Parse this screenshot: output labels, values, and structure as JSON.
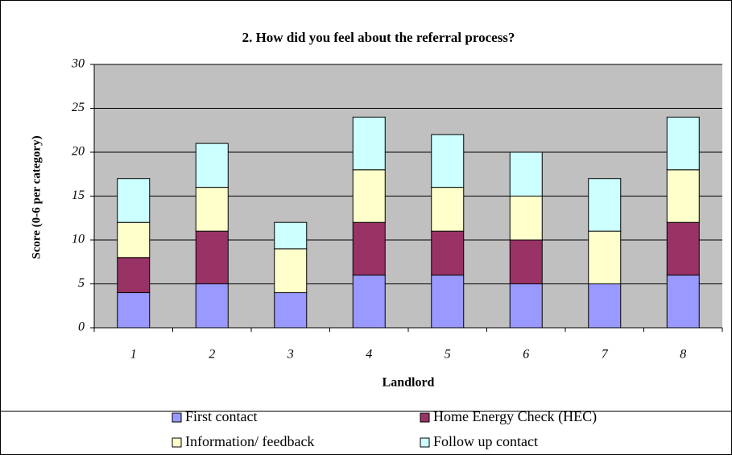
{
  "chart_data": {
    "type": "stacked-bar",
    "title": "2. How did you feel about the referral process?",
    "x_label": "Landlord",
    "y_label": "Score (0-6 per category)",
    "categories": [
      "1",
      "2",
      "3",
      "4",
      "5",
      "6",
      "7",
      "8"
    ],
    "series": [
      {
        "name": "First contact",
        "color": "#9999ff",
        "values": [
          4,
          5,
          4,
          6,
          6,
          5,
          5,
          6
        ]
      },
      {
        "name": "Home Energy Check (HEC)",
        "color": "#993366",
        "values": [
          4,
          6,
          0,
          6,
          5,
          5,
          0,
          6
        ]
      },
      {
        "name": "Information/ feedback",
        "color": "#ffffcc",
        "values": [
          4,
          5,
          5,
          6,
          5,
          5,
          6,
          6
        ]
      },
      {
        "name": "Follow up contact",
        "color": "#ccffff",
        "values": [
          5,
          5,
          3,
          6,
          6,
          5,
          6,
          6
        ]
      }
    ],
    "ylim": [
      0,
      30
    ],
    "yticks": [
      0,
      5,
      10,
      15,
      20,
      25,
      30
    ],
    "grid": true,
    "legend": "bottom"
  }
}
